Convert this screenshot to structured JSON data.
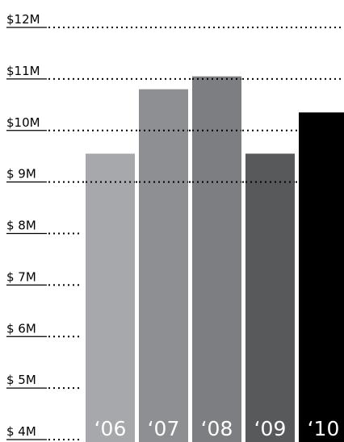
{
  "chart_data": {
    "type": "bar",
    "categories": [
      "‘06",
      "‘07",
      "‘08",
      "‘09",
      "‘10"
    ],
    "values": [
      9.55,
      10.8,
      11.05,
      9.55,
      10.35
    ],
    "bar_colors": [
      "#a7a8ab",
      "#8e8f92",
      "#7d7e81",
      "#58595b",
      "#000000"
    ],
    "y_ticks": [
      "$ 4M",
      "$ 5M",
      "$ 6M",
      "$ 7M",
      "$ 8M",
      "$ 9M",
      "$10M",
      "$11M",
      "$12M"
    ],
    "y_tick_values": [
      4,
      5,
      6,
      7,
      8,
      9,
      10,
      11,
      12
    ],
    "ylim": [
      4,
      12
    ],
    "title": "",
    "xlabel": "",
    "ylabel": "",
    "grid": "dotted horizontal lines at each tick",
    "legend": "none"
  }
}
